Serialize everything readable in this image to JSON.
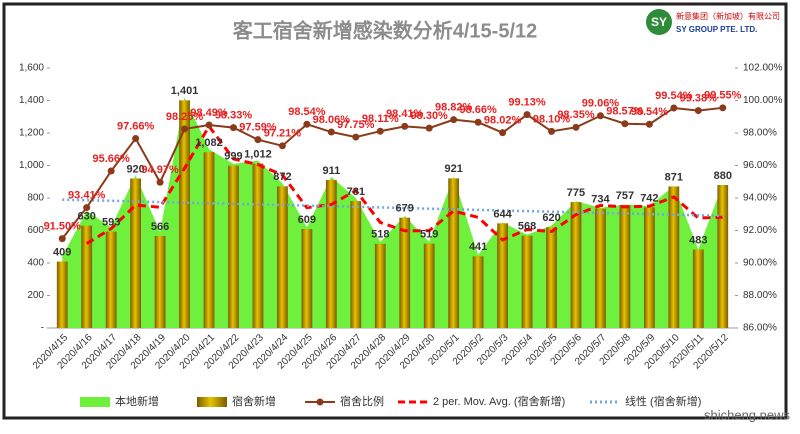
{
  "chart_data": {
    "type": "combo",
    "title": "客工宿舍新增感染数分析4/15-5/12",
    "logo": {
      "company_cn": "新意集团（新加坡）有限公司",
      "company_en": "SY GROUP PTE. LTD."
    },
    "watermark": "shicheng.news",
    "categories": [
      "2020/4/15",
      "2020/4/16",
      "2020/4/17",
      "2020/4/18",
      "2020/4/19",
      "2020/4/20",
      "2020/4/21",
      "2020/4/22",
      "2020/4/23",
      "2020/4/24",
      "2020/4/25",
      "2020/4/26",
      "2020/4/27",
      "2020/4/28",
      "2020/4/29",
      "2020/4/30",
      "2020/5/1",
      "2020/5/2",
      "2020/5/3",
      "2020/5/4",
      "2020/5/5",
      "2020/5/6",
      "2020/5/7",
      "2020/5/8",
      "2020/5/9",
      "2020/5/10",
      "2020/5/11",
      "2020/5/12"
    ],
    "ylim": [
      0,
      1600
    ],
    "yticks": [
      {
        "value": 0,
        "label": "-"
      },
      200,
      400,
      600,
      800,
      {
        "value": 1000,
        "label": "1,000"
      },
      {
        "value": 1200,
        "label": "1,200"
      },
      {
        "value": 1400,
        "label": "1,400"
      },
      {
        "value": 1600,
        "label": "1,600"
      }
    ],
    "y2lim": [
      86,
      102
    ],
    "y2ticks": [
      {
        "value": 86,
        "label": "86.00%"
      },
      {
        "value": 88,
        "label": "88.00%"
      },
      {
        "value": 90,
        "label": "90.00%"
      },
      {
        "value": 92,
        "label": "92.00%"
      },
      {
        "value": 94,
        "label": "94.00%"
      },
      {
        "value": 96,
        "label": "96.00%"
      },
      {
        "value": 98,
        "label": "98.00%"
      },
      {
        "value": 100,
        "label": "100.00%"
      },
      {
        "value": 102,
        "label": "102.00%"
      }
    ],
    "series": [
      {
        "name": "本地新增",
        "kind": "area",
        "color": "#6ef03c",
        "values": [
          440,
          720,
          620,
          940,
          590,
          1420,
          1100,
          1010,
          1030,
          890,
          620,
          930,
          800,
          530,
          690,
          530,
          930,
          450,
          650,
          575,
          630,
          780,
          740,
          760,
          750,
          875,
          485,
          885
        ]
      },
      {
        "name": "宿舍新增",
        "kind": "bar",
        "color": "#c9a000",
        "values": [
          409,
          630,
          593,
          920,
          566,
          1401,
          1082,
          999,
          1012,
          872,
          609,
          911,
          781,
          518,
          679,
          519,
          921,
          441,
          644,
          568,
          620,
          775,
          734,
          757,
          742,
          871,
          483,
          880
        ],
        "value_labels": [
          "409",
          "630",
          "593",
          "920",
          "566",
          "1,401",
          "1,082",
          "999",
          "1,012",
          "872",
          "609",
          "911",
          "781",
          "518",
          "679",
          "519",
          "921",
          "441",
          "644",
          "568",
          "620",
          "775",
          "734",
          "757",
          "742",
          "871",
          "483",
          "880"
        ]
      },
      {
        "name": "宿舍比例",
        "kind": "line",
        "axis": "y2",
        "color": "#8b3a1a",
        "values": [
          91.5,
          93.41,
          95.66,
          97.66,
          94.97,
          98.25,
          98.49,
          98.33,
          97.59,
          97.21,
          98.54,
          98.06,
          97.75,
          98.11,
          98.41,
          98.3,
          98.82,
          98.66,
          98.02,
          99.13,
          98.1,
          98.35,
          99.06,
          98.57,
          98.54,
          99.54,
          99.38,
          99.55
        ],
        "value_labels": [
          "91.50%",
          "93.41%",
          "95.66%",
          "97.66%",
          "94.97%",
          "98.25%",
          "98.49%",
          "98.33%",
          "97.59%",
          "97.21%",
          "98.54%",
          "98.06%",
          "97.75%",
          "98.11%",
          "98.41%",
          "98.30%",
          "98.82%",
          "98.66%",
          "98.02%",
          "99.13%",
          "98.10%",
          "98.35%",
          "99.06%",
          "98.57%",
          "98.54%",
          "99.54%",
          "99.38%",
          "99.55%"
        ]
      },
      {
        "name": "2 per. Mov. Avg. (宿舍新增)",
        "kind": "dashed",
        "color": "#ff0000",
        "values": [
          null,
          519.5,
          611.5,
          756.5,
          743,
          983.5,
          1241.5,
          1040.5,
          1005.5,
          942,
          740.5,
          760,
          846,
          649.5,
          598.5,
          599,
          720,
          681,
          542.5,
          606,
          594,
          697.5,
          754.5,
          745.5,
          749.5,
          806.5,
          677,
          681.5
        ]
      },
      {
        "name": "线性 (宿舍新增)",
        "kind": "dotted",
        "color": "#6fa8dc",
        "values": [
          790,
          786,
          783,
          779,
          775,
          771,
          768,
          764,
          760,
          757,
          753,
          749,
          746,
          742,
          738,
          734,
          731,
          727,
          723,
          719,
          716,
          712,
          708,
          705,
          701,
          697,
          694,
          690
        ]
      }
    ]
  }
}
